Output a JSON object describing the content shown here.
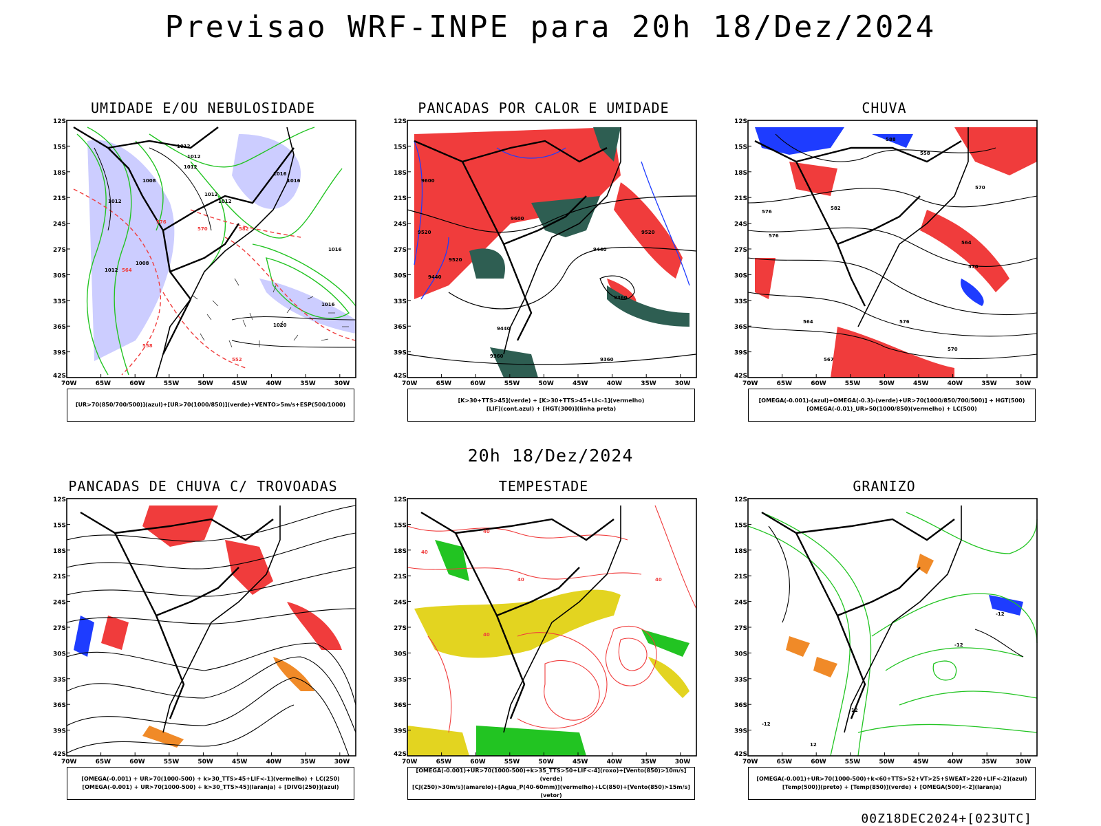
{
  "main_title": "Previsao WRF-INPE  para 20h 18/Dez/2024",
  "mid_date": "20h 18/Dez/2024",
  "run_stamp": "00Z18DEC2024+[023UTC]",
  "axes": {
    "lat_labels": [
      "12S",
      "15S",
      "18S",
      "21S",
      "24S",
      "27S",
      "30S",
      "33S",
      "36S",
      "39S",
      "42S"
    ],
    "lon_labels": [
      "70W",
      "65W",
      "60W",
      "55W",
      "50W",
      "45W",
      "40W",
      "35W",
      "30W"
    ]
  },
  "colors": {
    "blue": "#1e3cff",
    "green": "#22c422",
    "red": "#f03c3c",
    "darkgreen": "#2e5e52",
    "lavender": "#aab0ff",
    "yellow": "#e3d420",
    "orange": "#f08a28",
    "black": "#000000"
  },
  "panels": [
    {
      "title": "UMIDADE E/OU NEBULOSIDADE",
      "legend": [
        "[UR>70(850/700/500)](azul)+[UR>70(1000/850)](verde)+VENTO>5m/s+ESP(500/1000)"
      ]
    },
    {
      "title": "PANCADAS POR CALOR E UMIDADE",
      "legend": [
        "[K>30+TTS>45](verde) + [K>30+TTS>45+LI<-1](vermelho)",
        "[LIF](cont.azul) + [HGT(300)](linha preta)"
      ]
    },
    {
      "title": "CHUVA",
      "legend": [
        "[OMEGA(-0.001)-(azul)+OMEGA(-0.3)-(verde)+UR>70(1000/850/700/500)] + HGT(500)",
        "[OMEGA(-0.01)_UR>50(1000/850)(vermelho) + LC(500)"
      ]
    },
    {
      "title": "PANCADAS DE CHUVA C/ TROVOADAS",
      "legend": [
        "[OMEGA(-0.001) + UR>70(1000-500) + k>30_TTS>45+LIF<-1](vermelho) + LC(250)",
        "[OMEGA(-0.001) + UR>70(1000-500) + k>30_TTS>45](laranja) + [DIVG(250)](azul)"
      ]
    },
    {
      "title": "TEMPESTADE",
      "legend": [
        "[OMEGA(-0.001)+UR>70(1000-500)+k>35_TTS>50+LIF<-4](roxo)+[Vento(850)>10m/s](verde)",
        "[CJ(250)>30m/s](amarelo)+[Agua_P(40-60mm)](vermelho)+LC(850)+[Vento(850)>15m/s](vetor)"
      ]
    },
    {
      "title": "GRANIZO",
      "legend": [
        "[OMEGA(-0.001)+UR>70(1000-500)+k<60+TTS>52+VT>25+SWEAT>220+LIF<-2](azul)",
        "[Temp(500)](preto) + [Temp(850)](verde) + [OMEGA(500)<-2](laranja)"
      ]
    }
  ],
  "contour_labels": {
    "umidade": [
      "1012",
      "1012",
      "1012",
      "1008",
      "1016",
      "1012",
      "1016",
      "1012",
      "1008",
      "1012",
      "1016",
      "1020",
      "1016",
      "1012",
      "570",
      "576",
      "582",
      "564",
      "558",
      "552"
    ],
    "pancadas_calor": [
      "9600",
      "9520",
      "9520",
      "9600",
      "9440",
      "9520",
      "9440",
      "9360",
      "9360",
      "9440",
      "9360"
    ],
    "chuva": [
      "588",
      "582",
      "576",
      "570",
      "564",
      "558",
      "576",
      "570",
      "576",
      "564",
      "567",
      "570"
    ],
    "granizo": [
      "-12",
      "-12",
      "-12",
      "12",
      "12"
    ],
    "tempestade": [
      "40",
      "40",
      "40",
      "40",
      "40"
    ]
  }
}
